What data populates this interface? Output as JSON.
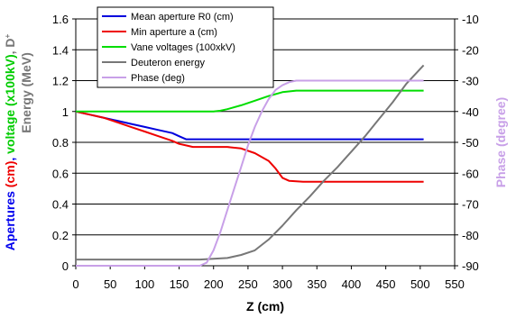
{
  "chart_data": {
    "type": "line",
    "xlabel": "Z (cm)",
    "x_ticks": [
      "0",
      "50",
      "100",
      "150",
      "200",
      "250",
      "300",
      "350",
      "400",
      "450",
      "500",
      "550"
    ],
    "xlim": [
      0,
      550
    ],
    "left_axis": {
      "ylim": [
        0,
        1.6
      ],
      "ticks": [
        "0",
        "0.2",
        "0.4",
        "0.6",
        "0.8",
        "1",
        "1.2",
        "1.4",
        "1.6"
      ],
      "label_parts": [
        {
          "text": "Apertures ",
          "color": "#0000ee"
        },
        {
          "text": "(cm)",
          "color": "#ee0000"
        },
        {
          "text": ", ",
          "color": "#0000ee"
        },
        {
          "text": "voltage (x100kV)",
          "color": "#00cc00"
        },
        {
          "text": ", D",
          "color": "#777777"
        },
        {
          "text": "+",
          "color": "#777777",
          "superscript": true
        }
      ],
      "label_line2": {
        "text": "Energy (MeV)",
        "color": "#777777"
      }
    },
    "right_axis": {
      "ylim": [
        -90,
        -10
      ],
      "ticks": [
        "-10",
        "-20",
        "-30",
        "-40",
        "-50",
        "-60",
        "-70",
        "-80",
        "-90"
      ],
      "label": "Phase (degree)",
      "label_color": "#c8a0e8"
    },
    "legend_position": "top-center",
    "grid": {
      "horizontal": true,
      "vertical": false
    },
    "series": [
      {
        "name": "Mean aperture R0 (cm)",
        "color": "#0000dd",
        "axis": "left",
        "x": [
          0,
          20,
          40,
          60,
          80,
          100,
          120,
          140,
          150,
          160,
          170,
          200,
          300,
          400,
          505
        ],
        "y": [
          1.0,
          0.98,
          0.96,
          0.94,
          0.92,
          0.9,
          0.88,
          0.86,
          0.84,
          0.82,
          0.82,
          0.82,
          0.82,
          0.82,
          0.82
        ]
      },
      {
        "name": "Min aperture a (cm)",
        "color": "#ee0000",
        "axis": "left",
        "x": [
          0,
          20,
          40,
          60,
          80,
          100,
          120,
          140,
          150,
          160,
          170,
          200,
          220,
          240,
          260,
          280,
          290,
          300,
          310,
          330,
          400,
          505
        ],
        "y": [
          1.0,
          0.98,
          0.96,
          0.93,
          0.9,
          0.87,
          0.84,
          0.81,
          0.79,
          0.78,
          0.77,
          0.77,
          0.77,
          0.76,
          0.73,
          0.68,
          0.63,
          0.57,
          0.55,
          0.545,
          0.545,
          0.545
        ]
      },
      {
        "name": "Vane voltages (100xkV)",
        "color": "#00dd00",
        "axis": "left",
        "x": [
          0,
          100,
          200,
          210,
          220,
          240,
          260,
          280,
          300,
          320,
          340,
          400,
          505
        ],
        "y": [
          1.0,
          1.0,
          1.0,
          1.005,
          1.015,
          1.04,
          1.07,
          1.1,
          1.125,
          1.135,
          1.135,
          1.135,
          1.135
        ]
      },
      {
        "name": "Deuteron energy",
        "color": "#777777",
        "axis": "left",
        "x": [
          0,
          100,
          180,
          200,
          220,
          240,
          260,
          280,
          300,
          320,
          340,
          360,
          380,
          400,
          420,
          440,
          460,
          480,
          505
        ],
        "y": [
          0.04,
          0.04,
          0.04,
          0.045,
          0.05,
          0.07,
          0.1,
          0.17,
          0.26,
          0.36,
          0.45,
          0.55,
          0.64,
          0.74,
          0.84,
          0.95,
          1.06,
          1.18,
          1.3
        ]
      },
      {
        "name": "Phase (deg)",
        "color": "#c8a0e8",
        "axis": "right",
        "x": [
          0,
          150,
          180,
          190,
          200,
          210,
          220,
          230,
          240,
          250,
          260,
          270,
          280,
          290,
          300,
          310,
          320,
          340,
          400,
          505
        ],
        "y": [
          -90,
          -90,
          -90,
          -89,
          -85,
          -79,
          -72,
          -65,
          -58,
          -51,
          -45,
          -40,
          -36,
          -33,
          -31.5,
          -30.5,
          -30,
          -30,
          -30,
          -30
        ]
      }
    ]
  }
}
